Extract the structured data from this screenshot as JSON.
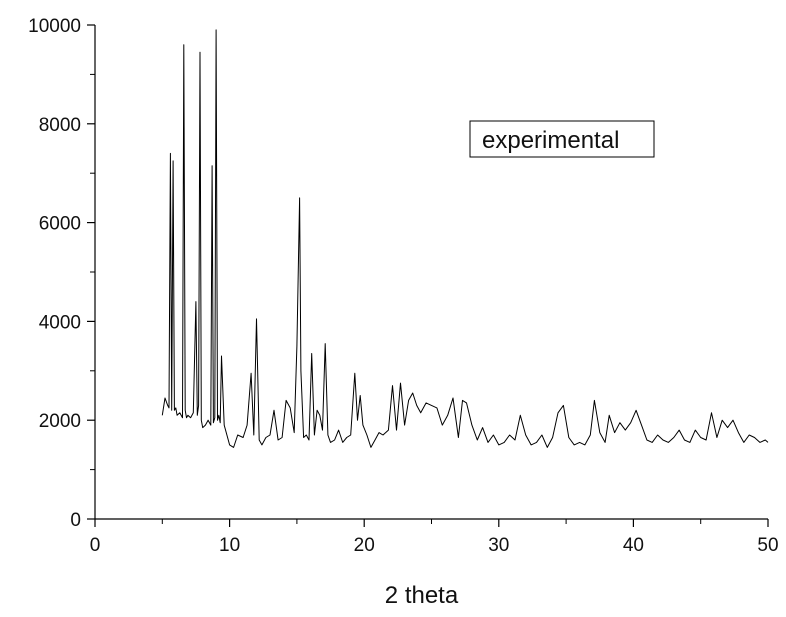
{
  "chart_data": {
    "type": "line",
    "title": "",
    "xlabel": "2 theta",
    "ylabel": "",
    "xlim": [
      0,
      50
    ],
    "ylim": [
      0,
      10000
    ],
    "x_ticks": [
      0,
      10,
      20,
      30,
      40,
      50
    ],
    "x_tick_labels": [
      "0",
      "10",
      "20",
      "30",
      "40",
      "50"
    ],
    "y_ticks": [
      0,
      2000,
      4000,
      6000,
      8000,
      10000
    ],
    "y_tick_labels": [
      "0",
      "2000",
      "4000",
      "6000",
      "8000",
      "10000"
    ],
    "grid": false,
    "legend": {
      "entries": [
        "experimental"
      ],
      "placement": "top-right"
    },
    "series": [
      {
        "name": "experimental",
        "color": "#000000",
        "x": [
          5.0,
          5.2,
          5.4,
          5.5,
          5.6,
          5.7,
          5.8,
          5.9,
          6.0,
          6.1,
          6.3,
          6.5,
          6.6,
          6.7,
          6.8,
          6.9,
          7.1,
          7.3,
          7.5,
          7.6,
          7.7,
          7.8,
          7.9,
          8.0,
          8.2,
          8.4,
          8.6,
          8.7,
          8.8,
          8.9,
          9.0,
          9.1,
          9.2,
          9.3,
          9.4,
          9.6,
          9.8,
          10.0,
          10.3,
          10.6,
          11.0,
          11.3,
          11.6,
          11.8,
          12.0,
          12.2,
          12.4,
          12.7,
          13.0,
          13.3,
          13.6,
          13.9,
          14.2,
          14.5,
          14.8,
          15.0,
          15.2,
          15.3,
          15.5,
          15.7,
          15.9,
          16.1,
          16.3,
          16.5,
          16.7,
          16.9,
          17.1,
          17.3,
          17.5,
          17.8,
          18.1,
          18.4,
          18.7,
          19.0,
          19.3,
          19.5,
          19.7,
          19.9,
          20.2,
          20.5,
          20.8,
          21.1,
          21.4,
          21.8,
          22.1,
          22.4,
          22.7,
          23.0,
          23.3,
          23.6,
          23.9,
          24.2,
          24.6,
          25.0,
          25.4,
          25.8,
          26.2,
          26.6,
          27.0,
          27.3,
          27.6,
          28.0,
          28.4,
          28.8,
          29.2,
          29.6,
          30.0,
          30.4,
          30.8,
          31.2,
          31.6,
          32.0,
          32.4,
          32.8,
          33.2,
          33.6,
          34.0,
          34.4,
          34.8,
          35.2,
          35.6,
          36.0,
          36.4,
          36.8,
          37.1,
          37.5,
          37.9,
          38.2,
          38.6,
          39.0,
          39.4,
          39.8,
          40.2,
          40.6,
          41.0,
          41.4,
          41.8,
          42.2,
          42.6,
          43.0,
          43.4,
          43.8,
          44.2,
          44.6,
          45.0,
          45.4,
          45.8,
          46.2,
          46.6,
          47.0,
          47.4,
          47.8,
          48.2,
          48.6,
          49.0,
          49.4,
          49.8,
          50.0
        ],
        "y": [
          2100,
          2450,
          2300,
          2250,
          7400,
          2200,
          7250,
          2200,
          2250,
          2100,
          2150,
          2050,
          9600,
          2200,
          2050,
          2100,
          2050,
          2150,
          4400,
          2100,
          2300,
          9450,
          2000,
          1850,
          1900,
          2000,
          1900,
          7150,
          1950,
          2050,
          9900,
          2000,
          2100,
          1950,
          3300,
          1900,
          1700,
          1500,
          1450,
          1700,
          1650,
          1900,
          2950,
          1700,
          4050,
          1600,
          1500,
          1650,
          1700,
          2200,
          1600,
          1650,
          2400,
          2250,
          1750,
          3500,
          6500,
          3000,
          1650,
          1700,
          1600,
          3350,
          1700,
          2200,
          2100,
          1800,
          3550,
          1700,
          1550,
          1600,
          1800,
          1550,
          1650,
          1700,
          2950,
          2000,
          2500,
          1900,
          1700,
          1450,
          1600,
          1750,
          1700,
          1800,
          2700,
          1800,
          2750,
          1900,
          2400,
          2550,
          2300,
          2150,
          2350,
          2300,
          2250,
          1900,
          2100,
          2450,
          1650,
          2400,
          2350,
          1900,
          1600,
          1850,
          1550,
          1700,
          1500,
          1550,
          1700,
          1600,
          2100,
          1700,
          1500,
          1550,
          1700,
          1450,
          1650,
          2150,
          2300,
          1650,
          1500,
          1550,
          1500,
          1700,
          2400,
          1750,
          1550,
          2100,
          1750,
          1950,
          1800,
          1950,
          2200,
          1900,
          1600,
          1550,
          1700,
          1600,
          1550,
          1650,
          1800,
          1600,
          1550,
          1800,
          1650,
          1600,
          2150,
          1650,
          2000,
          1850,
          2000,
          1750,
          1550,
          1700,
          1650,
          1550,
          1600,
          1550
        ]
      }
    ]
  }
}
